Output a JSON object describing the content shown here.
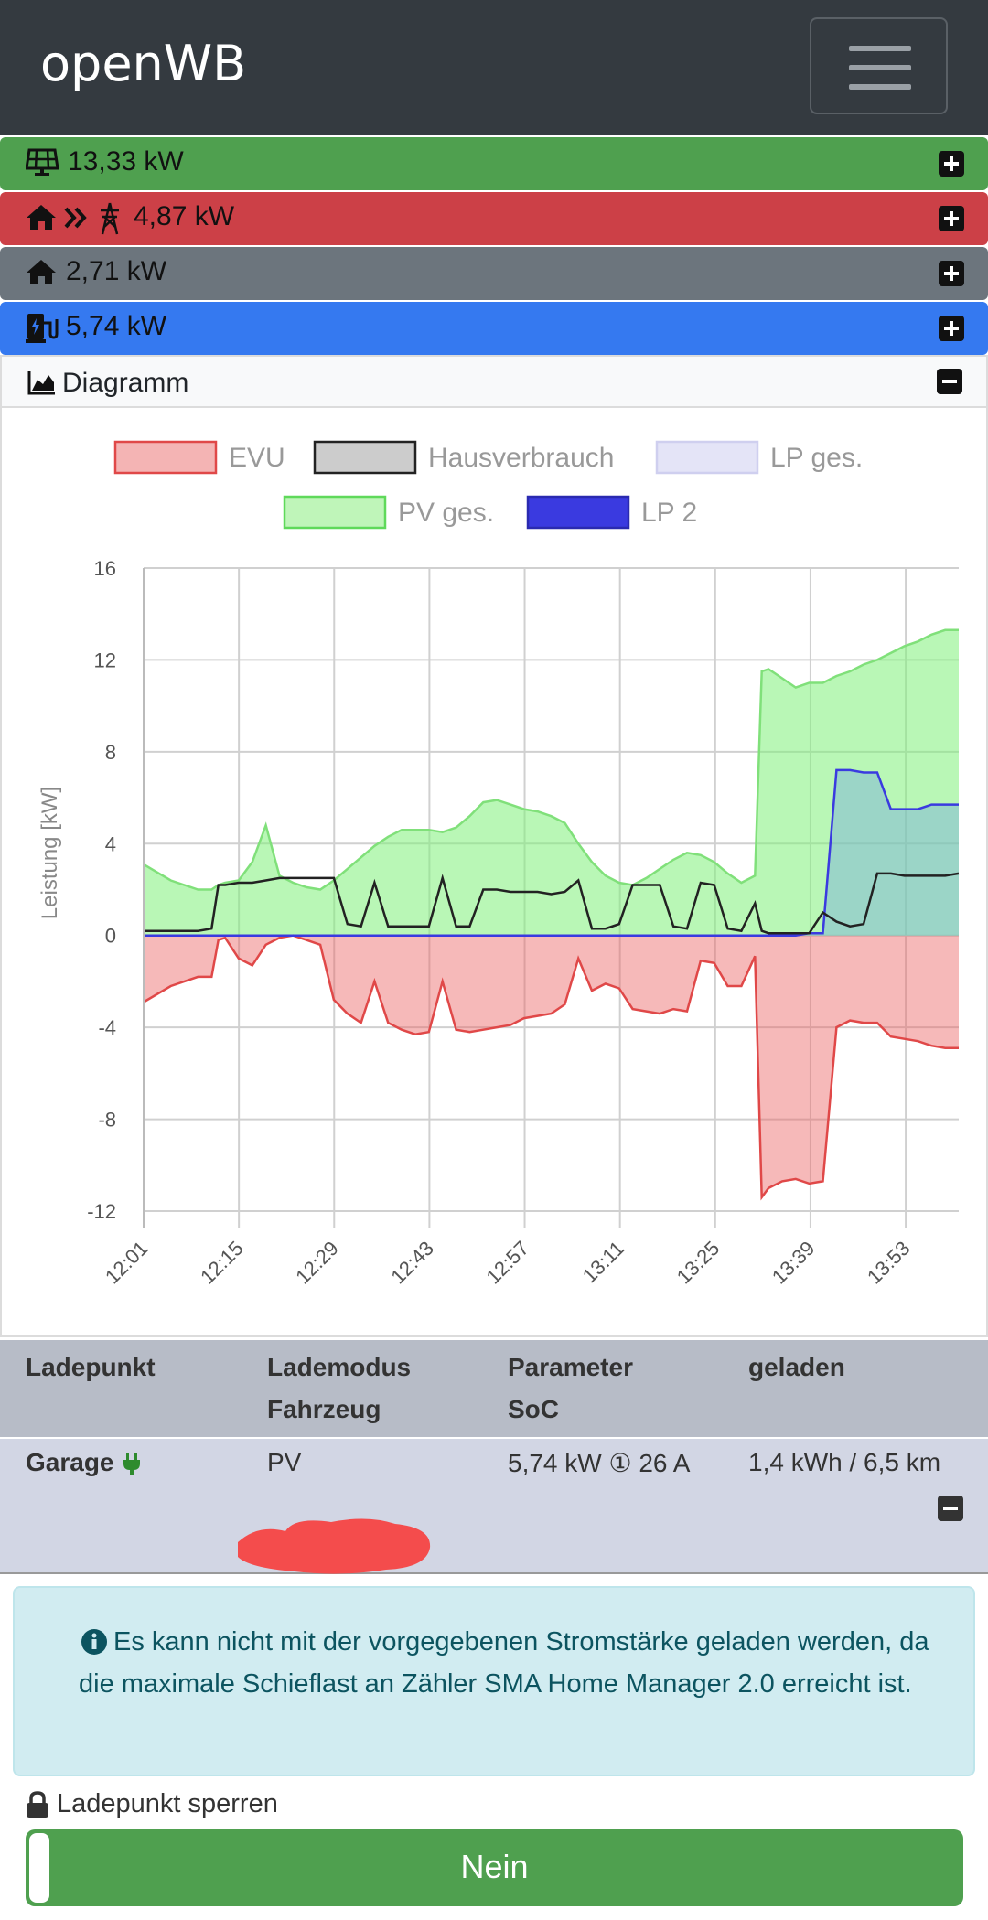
{
  "app": {
    "brand": "openWB"
  },
  "bars": {
    "pv": {
      "value": "13,33 kW",
      "color": "#4fa04f"
    },
    "grid": {
      "value": "4,87 kW",
      "color": "#cc4047"
    },
    "house": {
      "value": "2,71 kW",
      "color": "#6c757d"
    },
    "charge": {
      "value": "5,74 kW",
      "color": "#3579f0"
    }
  },
  "diagram": {
    "label": "Diagramm"
  },
  "chart_data": {
    "type": "line",
    "ylabel": "Leistung [kW]",
    "ylim": [
      -12,
      16
    ],
    "yticks": [
      "16",
      "12",
      "8",
      "4",
      "0",
      "-4",
      "-8",
      "-12"
    ],
    "xticks": [
      "12:01",
      "12:15",
      "12:29",
      "12:43",
      "12:57",
      "13:11",
      "13:25",
      "13:39",
      "13:53"
    ],
    "legend": [
      "EVU",
      "Hausverbrauch",
      "LP ges.",
      "PV ges.",
      "LP 2"
    ],
    "legend_position": "top",
    "grid": true,
    "x": [
      0,
      4,
      8,
      10,
      11,
      12,
      14,
      16,
      18,
      20,
      22,
      24,
      26,
      28,
      30,
      32,
      34,
      36,
      38,
      40,
      42,
      44,
      46,
      48,
      50,
      52,
      54,
      56,
      58,
      60,
      62,
      64,
      66,
      68,
      70,
      72,
      74,
      76,
      78,
      80,
      82,
      84,
      86,
      88,
      90,
      91,
      92,
      94,
      96,
      98,
      100,
      102,
      104,
      106,
      108,
      110,
      112,
      114,
      116,
      118,
      120
    ],
    "series": [
      {
        "name": "PV ges.",
        "color": "#80e07a",
        "values": [
          3.1,
          2.4,
          2.0,
          2.0,
          2.2,
          2.3,
          2.4,
          3.2,
          4.8,
          2.6,
          2.3,
          2.1,
          2.0,
          2.4,
          2.9,
          3.4,
          3.9,
          4.3,
          4.6,
          4.6,
          4.6,
          4.5,
          4.7,
          5.2,
          5.8,
          5.9,
          5.7,
          5.5,
          5.4,
          5.2,
          4.9,
          4.0,
          3.2,
          2.6,
          2.3,
          2.2,
          2.5,
          2.9,
          3.3,
          3.6,
          3.5,
          3.2,
          2.7,
          2.3,
          2.6,
          11.5,
          11.6,
          11.2,
          10.8,
          11.0,
          11.0,
          11.3,
          11.5,
          11.8,
          12.0,
          12.3,
          12.6,
          12.8,
          13.1,
          13.3,
          13.3
        ]
      },
      {
        "name": "Hausverbrauch",
        "color": "#222222",
        "values": [
          0.2,
          0.2,
          0.2,
          0.3,
          2.2,
          2.2,
          2.3,
          2.3,
          2.4,
          2.5,
          2.5,
          2.5,
          2.5,
          2.5,
          0.5,
          0.4,
          2.3,
          0.4,
          0.4,
          0.4,
          0.4,
          2.5,
          0.4,
          0.4,
          2.0,
          2.0,
          1.9,
          1.9,
          1.9,
          1.8,
          1.9,
          2.4,
          0.3,
          0.3,
          0.5,
          2.2,
          2.2,
          2.2,
          0.4,
          0.3,
          2.3,
          2.2,
          0.3,
          0.2,
          1.4,
          0.2,
          0.1,
          0.1,
          0.1,
          0.1,
          1.0,
          0.6,
          0.4,
          0.5,
          2.7,
          2.7,
          2.6,
          2.6,
          2.6,
          2.6,
          2.7
        ]
      },
      {
        "name": "LP 2",
        "color": "#3a3ae0",
        "values": [
          0,
          0,
          0,
          0,
          0,
          0,
          0,
          0,
          0,
          0,
          0,
          0,
          0,
          0,
          0,
          0,
          0,
          0,
          0,
          0,
          0,
          0,
          0,
          0,
          0,
          0,
          0,
          0,
          0,
          0,
          0,
          0,
          0,
          0,
          0,
          0,
          0,
          0,
          0,
          0,
          0,
          0,
          0,
          0,
          0,
          0,
          0,
          0,
          0,
          0.1,
          0.1,
          7.2,
          7.2,
          7.1,
          7.1,
          5.5,
          5.5,
          5.5,
          5.7,
          5.7,
          5.7
        ]
      },
      {
        "name": "EVU",
        "color": "#e04848",
        "values": [
          -2.9,
          -2.2,
          -1.8,
          -1.8,
          -0.2,
          -0.1,
          -1.0,
          -1.3,
          -0.4,
          -0.1,
          0.0,
          -0.2,
          -0.4,
          -2.8,
          -3.4,
          -3.8,
          -2.0,
          -3.8,
          -4.1,
          -4.3,
          -4.2,
          -2.0,
          -4.1,
          -4.2,
          -4.1,
          -4.0,
          -3.9,
          -3.6,
          -3.5,
          -3.4,
          -3.0,
          -1.0,
          -2.4,
          -2.1,
          -2.3,
          -3.2,
          -3.3,
          -3.4,
          -3.2,
          -3.3,
          -1.1,
          -1.2,
          -2.2,
          -2.2,
          -0.9,
          -11.4,
          -11.0,
          -10.7,
          -10.6,
          -10.8,
          -10.7,
          -4.0,
          -3.7,
          -3.8,
          -3.8,
          -4.4,
          -4.5,
          -4.6,
          -4.8,
          -4.9,
          -4.9
        ]
      }
    ]
  },
  "table": {
    "headers": [
      "Ladepunkt",
      "Lademodus",
      "Fahrzeug",
      "Parameter",
      "SoC",
      "geladen"
    ],
    "row": {
      "name": "Garage",
      "mode": "PV",
      "params": "5,74 kW ① 26 A",
      "charged": "1,4 kWh / 6,5 km"
    }
  },
  "alert": {
    "text": "Es kann nicht mit der vorgegebenen Stromstärke geladen werden, da die maximale Schieflast an Zähler SMA Home Manager 2.0 erreicht ist."
  },
  "lock": {
    "label": "Ladepunkt sperren",
    "toggle": "Nein"
  }
}
